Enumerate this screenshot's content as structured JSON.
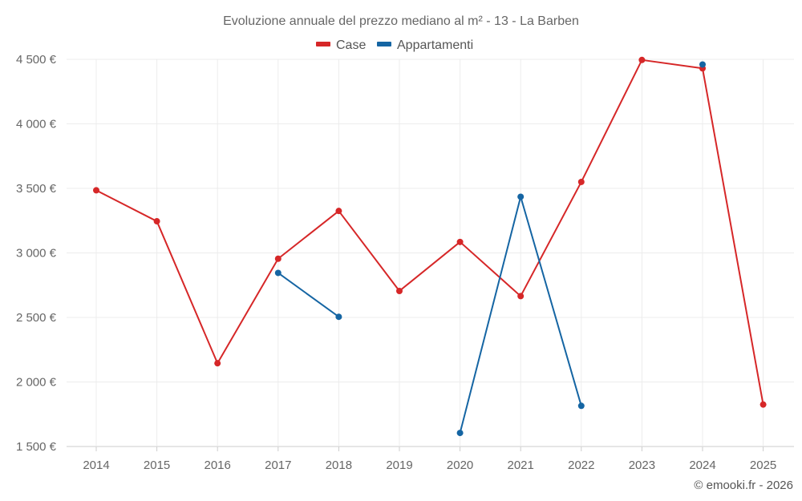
{
  "chart_data": {
    "type": "line",
    "title": "Evoluzione annuale del prezzo mediano al m² - 13 - La Barben",
    "x": [
      "2014",
      "2015",
      "2016",
      "2017",
      "2018",
      "2019",
      "2020",
      "2021",
      "2022",
      "2023",
      "2024",
      "2025"
    ],
    "ylim": [
      1500,
      4500
    ],
    "yticks": [
      1500,
      2000,
      2500,
      3000,
      3500,
      4000,
      4500
    ],
    "ytick_labels": [
      "1 500 €",
      "2 000 €",
      "2 500 €",
      "3 000 €",
      "3 500 €",
      "4 000 €",
      "4 500 €"
    ],
    "legend_position": "top-center",
    "grid": true,
    "series": [
      {
        "name": "Case",
        "color": "#d62728",
        "values": [
          3485,
          3245,
          2145,
          2955,
          3325,
          2705,
          3085,
          2665,
          3550,
          4495,
          4430,
          1825
        ]
      },
      {
        "name": "Appartamenti",
        "color": "#1565a3",
        "values": [
          null,
          null,
          null,
          2845,
          2505,
          null,
          1605,
          3435,
          1815,
          null,
          4460,
          null
        ]
      }
    ]
  },
  "credit": "© emooki.fr - 2026"
}
